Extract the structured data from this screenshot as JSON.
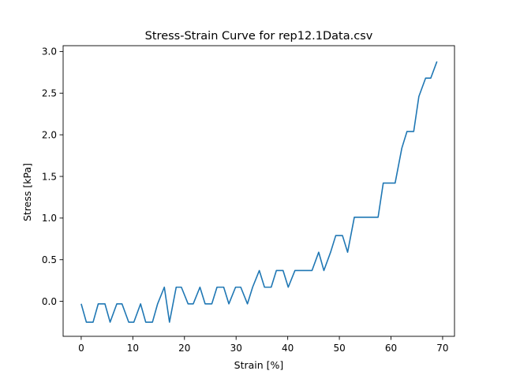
{
  "chart_data": {
    "type": "line",
    "title": "Stress-Strain Curve for rep12.1Data.csv",
    "xlabel": "Strain [%]",
    "ylabel": "Stress [kPa]",
    "xlim": [
      -3.5,
      72.3
    ],
    "ylim": [
      -0.42,
      3.07
    ],
    "xticks": [
      0,
      10,
      20,
      30,
      40,
      50,
      60,
      70
    ],
    "yticks": [
      0.0,
      0.5,
      1.0,
      1.5,
      2.0,
      2.5,
      3.0
    ],
    "xtick_labels": [
      "0",
      "10",
      "20",
      "30",
      "40",
      "50",
      "60",
      "70"
    ],
    "ytick_labels": [
      "0.0",
      "0.5",
      "1.0",
      "1.5",
      "2.0",
      "2.5",
      "3.0"
    ],
    "grid": false,
    "line_color": "#1f77b4",
    "series": [
      {
        "x": [
          0.0,
          1.0,
          2.3,
          3.3,
          4.6,
          5.6,
          6.9,
          7.9,
          9.2,
          10.2,
          11.5,
          12.5,
          13.8,
          14.8,
          16.1,
          17.1,
          18.4,
          19.4,
          20.7,
          21.7,
          23.0,
          24.0,
          25.3,
          26.3,
          27.6,
          28.6,
          29.9,
          30.9,
          32.2,
          33.2,
          34.5,
          35.5,
          36.8,
          37.8,
          39.1,
          40.1,
          41.4,
          42.4,
          43.7,
          44.7,
          46.0,
          47.0,
          48.3,
          49.3,
          50.6,
          51.6,
          52.9,
          53.9,
          55.2,
          56.2,
          57.5,
          58.5,
          59.8,
          60.8,
          62.1,
          63.1,
          64.4,
          65.4,
          66.7,
          67.7,
          68.9
        ],
        "y": [
          -0.03,
          -0.25,
          -0.25,
          -0.03,
          -0.03,
          -0.25,
          -0.03,
          -0.03,
          -0.25,
          -0.25,
          -0.03,
          -0.25,
          -0.25,
          -0.03,
          0.17,
          -0.25,
          0.17,
          0.17,
          -0.03,
          -0.03,
          0.17,
          -0.03,
          -0.03,
          0.17,
          0.17,
          -0.03,
          0.17,
          0.17,
          -0.03,
          0.17,
          0.37,
          0.17,
          0.17,
          0.37,
          0.37,
          0.17,
          0.37,
          0.37,
          0.37,
          0.37,
          0.59,
          0.37,
          0.59,
          0.79,
          0.79,
          0.59,
          1.01,
          1.01,
          1.01,
          1.01,
          1.01,
          1.42,
          1.42,
          1.42,
          1.84,
          2.04,
          2.04,
          2.46,
          2.68,
          2.68,
          2.88
        ]
      }
    ]
  }
}
